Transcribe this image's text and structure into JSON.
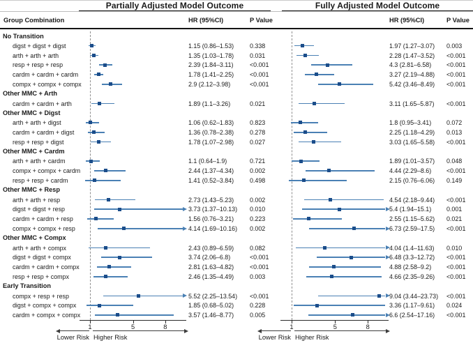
{
  "header": {
    "group_col": "Group Combination",
    "hr_col": "HR (95%CI)",
    "p_col": "P Value"
  },
  "panels": [
    {
      "title": "Partially Adjusted Model Outcome",
      "hr_header": "HR (95%CI)",
      "p_header": "P Value"
    },
    {
      "title": "Fully Adjusted Model Outcome",
      "hr_header": "HR (95%CI)",
      "p_header": "P Value"
    }
  ],
  "axis": {
    "ticks": [
      "1",
      "5",
      "8"
    ],
    "lower_label": "Lower Risk",
    "higher_label": "Higher Risk"
  },
  "colors": {
    "marker": "#1b4d8a",
    "ci_line": "#4a80b4",
    "ref_line": "#8f8f8f",
    "rule": "#141414"
  },
  "chart_data": {
    "type": "forest",
    "x_scale": "linear",
    "x_ticks": [
      1,
      5,
      8
    ],
    "reference_value": 1,
    "x_axis_range": [
      0.15,
      9.8
    ],
    "legend_note_left": "Lower Risk",
    "legend_note_right": "Higher Risk",
    "sections": [
      {
        "name": "No Transition",
        "rows": [
          {
            "label": "digst + digst + digst",
            "partially": {
              "hr": 1.15,
              "lo": 0.86,
              "hi": 1.53,
              "text": "1.15 (0.86–1.53)",
              "p": "0.338"
            },
            "fully": {
              "hr": 1.97,
              "lo": 1.27,
              "hi": 3.07,
              "text": "1.97 (1.27–3.07)",
              "p": "0.003"
            }
          },
          {
            "label": "arth + arth + arth",
            "partially": {
              "hr": 1.35,
              "lo": 1.03,
              "hi": 1.78,
              "text": "1.35 (1.03–1.78)",
              "p": "0.031"
            },
            "fully": {
              "hr": 2.28,
              "lo": 1.47,
              "hi": 3.52,
              "text": "2.28 (1.47–3.52)",
              "p": "<0.001"
            }
          },
          {
            "label": "resp + resp + resp",
            "partially": {
              "hr": 2.39,
              "lo": 1.84,
              "hi": 3.11,
              "text": "2.39 (1.84–3.11)",
              "p": "<0.001"
            },
            "fully": {
              "hr": 4.3,
              "lo": 2.81,
              "hi": 6.58,
              "text": "4.3 (2.81–6.58)",
              "p": "<0.001"
            }
          },
          {
            "label": "cardm + cardm + cardm",
            "partially": {
              "hr": 1.78,
              "lo": 1.41,
              "hi": 2.25,
              "text": "1.78 (1.41–2.25)",
              "p": "<0.001"
            },
            "fully": {
              "hr": 3.27,
              "lo": 2.19,
              "hi": 4.88,
              "text": "3.27 (2.19–4.88)",
              "p": "<0.001"
            }
          },
          {
            "label": "compx + compx + compx",
            "partially": {
              "hr": 2.9,
              "lo": 2.12,
              "hi": 3.98,
              "text": "2.9 (2.12–3.98)",
              "p": "<0.001"
            },
            "fully": {
              "hr": 5.42,
              "lo": 3.46,
              "hi": 8.49,
              "text": "5.42 (3.46–8.49)",
              "p": "<0.001"
            }
          }
        ]
      },
      {
        "name": "Other MMC + Arth",
        "rows": [
          {
            "label": "cardm + cardm + arth",
            "partially": {
              "hr": 1.89,
              "lo": 1.1,
              "hi": 3.26,
              "text": "1.89 (1.1–3.26)",
              "p": "0.021"
            },
            "fully": {
              "hr": 3.11,
              "lo": 1.65,
              "hi": 5.87,
              "text": "3.11 (1.65–5.87)",
              "p": "<0.001"
            }
          }
        ]
      },
      {
        "name": "Other MMC + Digst",
        "rows": [
          {
            "label": "arth + arth + digst",
            "partially": {
              "hr": 1.06,
              "lo": 0.62,
              "hi": 1.83,
              "text": "1.06 (0.62–1.83)",
              "p": "0.823"
            },
            "fully": {
              "hr": 1.8,
              "lo": 0.95,
              "hi": 3.41,
              "text": "1.8 (0.95–3.41)",
              "p": "0.072"
            }
          },
          {
            "label": "cardm + cardm + digst",
            "partially": {
              "hr": 1.36,
              "lo": 0.78,
              "hi": 2.38,
              "text": "1.36 (0.78–2.38)",
              "p": "0.278"
            },
            "fully": {
              "hr": 2.25,
              "lo": 1.18,
              "hi": 4.29,
              "text": "2.25 (1.18–4.29)",
              "p": "0.013"
            }
          },
          {
            "label": "resp + resp + digst",
            "partially": {
              "hr": 1.78,
              "lo": 1.07,
              "hi": 2.98,
              "text": "1.78 (1.07–2.98)",
              "p": "0.027"
            },
            "fully": {
              "hr": 3.03,
              "lo": 1.65,
              "hi": 5.58,
              "text": "3.03 (1.65–5.58)",
              "p": "<0.001"
            }
          }
        ]
      },
      {
        "name": "Other MMC + Cardm",
        "rows": [
          {
            "label": "arth + arth + cardm",
            "partially": {
              "hr": 1.1,
              "lo": 0.64,
              "hi": 1.9,
              "text": "1.1 (0.64–1.9)",
              "p": "0.721"
            },
            "fully": {
              "hr": 1.89,
              "lo": 1.01,
              "hi": 3.57,
              "text": "1.89 (1.01–3.57)",
              "p": "0.048"
            }
          },
          {
            "label": "compx + compx + cardm",
            "partially": {
              "hr": 2.44,
              "lo": 1.37,
              "hi": 4.34,
              "text": "2.44 (1.37–4.34)",
              "p": "0.002"
            },
            "fully": {
              "hr": 4.44,
              "lo": 2.29,
              "hi": 8.6,
              "text": "4.44 (2.29–8.6)",
              "p": "<0.001"
            }
          },
          {
            "label": "resp + resp + cardm",
            "partially": {
              "hr": 1.41,
              "lo": 0.52,
              "hi": 3.84,
              "text": "1.41 (0.52–3.84)",
              "p": "0.498"
            },
            "fully": {
              "hr": 2.15,
              "lo": 0.76,
              "hi": 6.06,
              "text": "2.15 (0.76–6.06)",
              "p": "0.149"
            }
          }
        ]
      },
      {
        "name": "Other MMC + Resp",
        "rows": [
          {
            "label": "arth + arth + resp",
            "partially": {
              "hr": 2.73,
              "lo": 1.43,
              "hi": 5.23,
              "text": "2.73 (1.43–5.23)",
              "p": "0.002"
            },
            "fully": {
              "hr": 4.54,
              "lo": 2.18,
              "hi": 9.44,
              "text": "4.54 (2.18–9.44)",
              "p": "<0.001"
            }
          },
          {
            "label": "digst + digst + resp",
            "partially": {
              "hr": 3.73,
              "lo": 1.37,
              "hi": 10.13,
              "text": "3.73 (1.37–10.13)",
              "p": "0.010"
            },
            "fully": {
              "hr": 5.4,
              "lo": 1.94,
              "hi": 15.1,
              "text": "5.4 (1.94–15.1)",
              "p": "0.001"
            }
          },
          {
            "label": "cardm + cardm + resp",
            "partially": {
              "hr": 1.56,
              "lo": 0.76,
              "hi": 3.21,
              "text": "1.56 (0.76–3.21)",
              "p": "0.223"
            },
            "fully": {
              "hr": 2.55,
              "lo": 1.15,
              "hi": 5.62,
              "text": "2.55 (1.15–5.62)",
              "p": "0.021"
            }
          },
          {
            "label": "compx + compx + resp",
            "partially": {
              "hr": 4.14,
              "lo": 1.69,
              "hi": 10.16,
              "text": "4.14 (1.69–10.16)",
              "p": "0.002"
            },
            "fully": {
              "hr": 6.73,
              "lo": 2.59,
              "hi": 17.5,
              "text": "6.73 (2.59–17.5)",
              "p": "<0.001"
            }
          }
        ]
      },
      {
        "name": "Other MMC + Compx",
        "rows": [
          {
            "label": "arth + arth + compx",
            "partially": {
              "hr": 2.43,
              "lo": 0.89,
              "hi": 6.59,
              "text": "2.43 (0.89–6.59)",
              "p": "0.082"
            },
            "fully": {
              "hr": 4.04,
              "lo": 1.4,
              "hi": 11.63,
              "text": "4.04 (1.4–11.63)",
              "p": "0.010"
            }
          },
          {
            "label": "digst + digst + compx",
            "partially": {
              "hr": 3.74,
              "lo": 2.06,
              "hi": 6.8,
              "text": "3.74 (2.06–6.8)",
              "p": "<0.001"
            },
            "fully": {
              "hr": 6.48,
              "lo": 3.3,
              "hi": 12.72,
              "text": "6.48 (3.3–12.72)",
              "p": "<0.001"
            }
          },
          {
            "label": "cardm + cardm + compx",
            "partially": {
              "hr": 2.81,
              "lo": 1.63,
              "hi": 4.82,
              "text": "2.81 (1.63–4.82)",
              "p": "<0.001"
            },
            "fully": {
              "hr": 4.88,
              "lo": 2.58,
              "hi": 9.2,
              "text": "4.88 (2.58–9.2)",
              "p": "<0.001"
            }
          },
          {
            "label": "resp + resp + compx",
            "partially": {
              "hr": 2.46,
              "lo": 1.35,
              "hi": 4.49,
              "text": "2.46 (1.35–4.49)",
              "p": "0.003"
            },
            "fully": {
              "hr": 4.66,
              "lo": 2.35,
              "hi": 9.26,
              "text": "4.66 (2.35–9.26)",
              "p": "<0.001"
            }
          }
        ]
      },
      {
        "name": "Early Transition",
        "rows": [
          {
            "label": "compx + resp + resp",
            "partially": {
              "hr": 5.52,
              "lo": 2.25,
              "hi": 13.54,
              "text": "5.52 (2.25–13.54)",
              "p": "<0.001"
            },
            "fully": {
              "hr": 9.04,
              "lo": 3.44,
              "hi": 23.73,
              "text": "9.04 (3.44–23.73)",
              "p": "<0.001"
            }
          },
          {
            "label": "digst + compx + compx",
            "partially": {
              "hr": 1.85,
              "lo": 0.68,
              "hi": 5.02,
              "text": "1.85 (0.68–5.02)",
              "p": "0.228"
            },
            "fully": {
              "hr": 3.36,
              "lo": 1.17,
              "hi": 9.61,
              "text": "3.36 (1.17–9.61)",
              "p": "0.024"
            }
          },
          {
            "label": "cardm + compx + compx",
            "partially": {
              "hr": 3.57,
              "lo": 1.46,
              "hi": 8.77,
              "text": "3.57 (1.46–8.77)",
              "p": "0.005"
            },
            "fully": {
              "hr": 6.6,
              "lo": 2.54,
              "hi": 17.16,
              "text": "6.6 (2.54–17.16)",
              "p": "<0.001"
            }
          }
        ]
      }
    ]
  }
}
